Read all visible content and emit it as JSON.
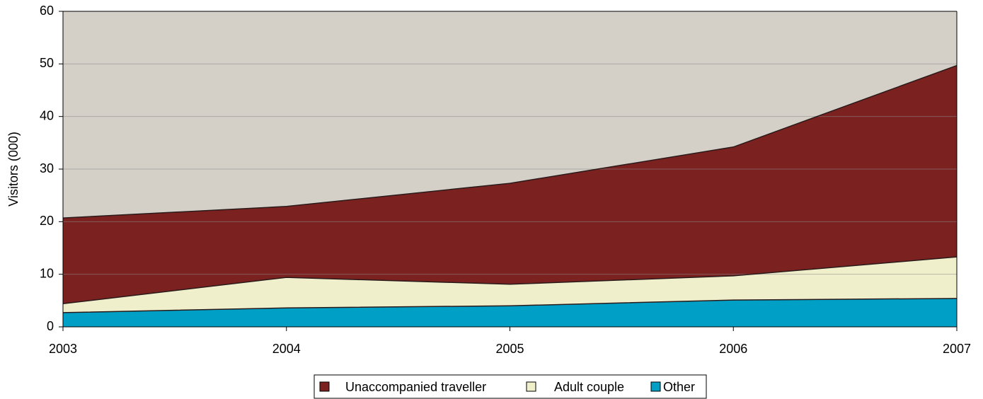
{
  "chart_data": {
    "type": "stacked_area",
    "y_axis_label": "Visitors (000)",
    "x": [
      2003,
      2004,
      2005,
      2006,
      2007
    ],
    "xlim": [
      2003,
      2007
    ],
    "xticks": [
      2003,
      2004,
      2005,
      2006,
      2007
    ],
    "ylim": [
      0,
      60
    ],
    "yticks": [
      0,
      10,
      20,
      30,
      40,
      50,
      60
    ],
    "grid": true,
    "legend_position": "bottom",
    "series": [
      {
        "name": "Unaccompanied traveller",
        "color": "#7b2120",
        "values": [
          16.3,
          13.5,
          19.2,
          24.5,
          36.4
        ]
      },
      {
        "name": "Adult couple",
        "color": "#f0efcc",
        "values": [
          1.7,
          5.8,
          4.1,
          4.6,
          7.9
        ]
      },
      {
        "name": "Other",
        "color": "#00a0c6",
        "values": [
          2.7,
          3.6,
          4.0,
          5.1,
          5.4
        ]
      }
    ]
  }
}
